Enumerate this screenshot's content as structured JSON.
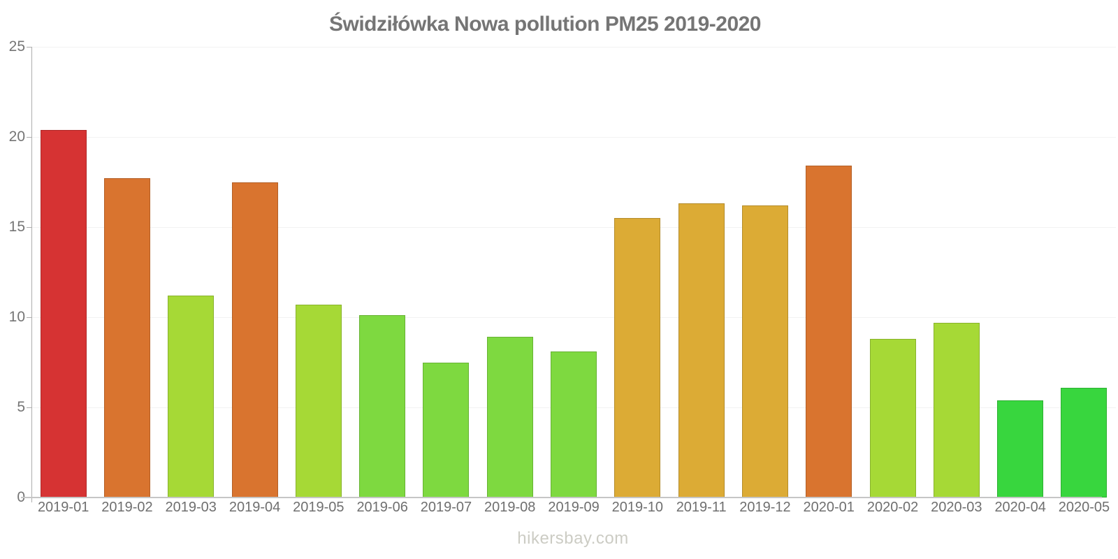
{
  "title": "Świdziłówka Nowa pollution PM25 2019-2020",
  "footer": "hikersbay.com",
  "chart_data": {
    "type": "bar",
    "title": "Świdziłówka Nowa pollution PM25 2019-2020",
    "xlabel": "",
    "ylabel": "",
    "ylim": [
      0,
      25
    ],
    "y_ticks": [
      0,
      5,
      10,
      15,
      20,
      25
    ],
    "grid": true,
    "legend_position": "none",
    "categories": [
      "2019-01",
      "2019-02",
      "2019-03",
      "2019-04",
      "2019-05",
      "2019-06",
      "2019-07",
      "2019-08",
      "2019-09",
      "2019-10",
      "2019-11",
      "2019-12",
      "2020-01",
      "2020-02",
      "2020-03",
      "2020-04",
      "2020-05"
    ],
    "values": [
      20.4,
      17.7,
      11.2,
      17.5,
      10.7,
      10.1,
      7.5,
      8.9,
      8.1,
      15.5,
      16.3,
      16.2,
      18.4,
      8.8,
      9.7,
      5.4,
      6.1
    ],
    "bar_colors": [
      "#d63333",
      "#d9742f",
      "#a6d936",
      "#d9742f",
      "#a6d936",
      "#7ed940",
      "#7ed940",
      "#7ed940",
      "#7ed940",
      "#dcab35",
      "#dcab35",
      "#dcab35",
      "#d9742f",
      "#a6d936",
      "#a6d936",
      "#38d63e",
      "#38d63e"
    ],
    "color_legend": {
      "red": "#d63333",
      "orange": "#d9742f",
      "yellow_green": "#a6d936",
      "green": "#7ed940",
      "amber": "#dcab35",
      "bright_green": "#38d63e"
    },
    "axis_colors": {
      "tick_label": "#757575",
      "axis_line": "#adadad",
      "baseline": "#c6c6c6",
      "gridline": "#f2f2f2",
      "title": "#757575",
      "footer": "#ccccc4"
    }
  }
}
